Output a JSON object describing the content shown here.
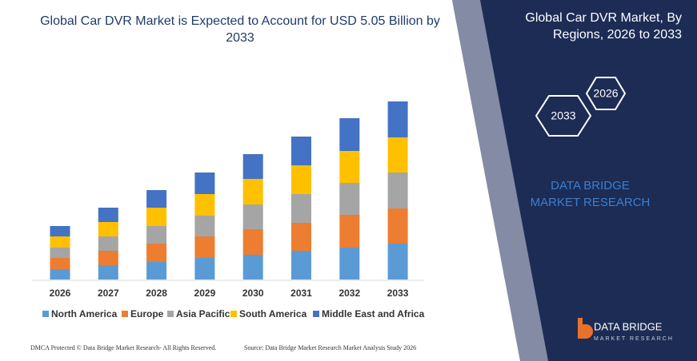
{
  "chart_data": {
    "type": "stacked_bar",
    "title": "Global Car DVR Market is Expected to Account for USD 5.05 Billion by 2033",
    "categories": [
      "2026",
      "2027",
      "2028",
      "2029",
      "2030",
      "2031",
      "2032",
      "2033"
    ],
    "series": [
      {
        "name": "North America",
        "color": "#5b9bd5",
        "values": [
          13,
          18,
          22,
          27,
          31,
          36,
          40,
          45
        ]
      },
      {
        "name": "Europe",
        "color": "#ed7d31",
        "values": [
          14,
          18,
          23,
          27,
          32,
          35,
          41,
          44
        ]
      },
      {
        "name": "Asia Pacific",
        "color": "#a5a5a5",
        "values": [
          13,
          18,
          22,
          26,
          31,
          36,
          40,
          45
        ]
      },
      {
        "name": "South America",
        "color": "#ffc000",
        "values": [
          14,
          18,
          23,
          27,
          32,
          36,
          40,
          44
        ]
      },
      {
        "name": "Middle East and Africa",
        "color": "#4472c4",
        "values": [
          13,
          18,
          22,
          27,
          31,
          36,
          41,
          45
        ]
      }
    ]
  },
  "panel": {
    "title": "Global Car DVR Market, By Regions, 2026 to 2033",
    "hexagons": [
      "2026",
      "2033"
    ],
    "brand": "DATA BRIDGE MARKET RESEARCH",
    "logo": {
      "name": "DATA BRIDGE",
      "tagline": "MARKET RESEARCH"
    }
  },
  "footer": {
    "left": "DMCA Protected © Data Bridge Market Research- All Rights Reserved.",
    "right": "Source: Data Bridge Market Research Market Analysis Study 2026"
  }
}
